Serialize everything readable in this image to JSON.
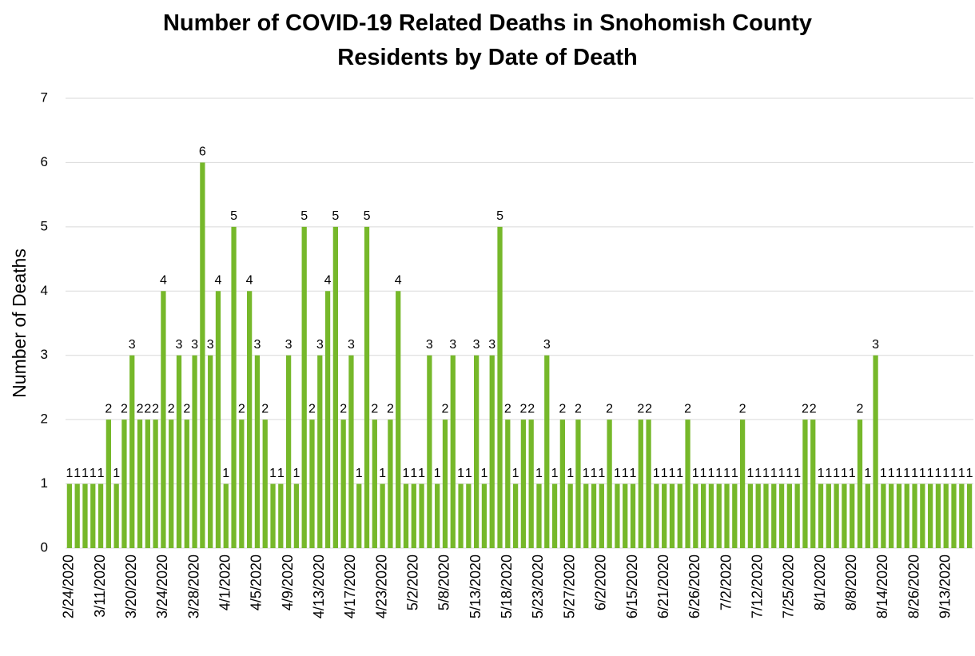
{
  "chart_data": {
    "type": "bar",
    "title": "Number of COVID-19 Related Deaths in Snohomish County Residents by Date of Death",
    "y_label": "Number of Deaths",
    "color": "#76b82a",
    "grid": true,
    "ylim": [
      0,
      7
    ],
    "yticks": [
      0,
      1,
      2,
      3,
      4,
      5,
      6,
      7
    ],
    "categories": [
      "2/24/2020",
      null,
      null,
      null,
      "3/11/2020",
      null,
      null,
      null,
      "3/20/2020",
      null,
      null,
      null,
      "3/24/2020",
      null,
      null,
      null,
      "3/28/2020",
      null,
      null,
      null,
      "4/1/2020",
      null,
      null,
      null,
      "4/5/2020",
      null,
      null,
      null,
      "4/9/2020",
      null,
      null,
      null,
      "4/13/2020",
      null,
      null,
      null,
      "4/17/2020",
      null,
      null,
      null,
      "4/23/2020",
      null,
      null,
      null,
      "5/2/2020",
      null,
      null,
      null,
      "5/8/2020",
      null,
      null,
      null,
      "5/13/2020",
      null,
      null,
      null,
      "5/18/2020",
      null,
      null,
      null,
      "5/23/2020",
      null,
      null,
      null,
      "5/27/2020",
      null,
      null,
      null,
      "6/2/2020",
      null,
      null,
      null,
      "6/15/2020",
      null,
      null,
      null,
      "6/21/2020",
      null,
      null,
      null,
      "6/26/2020",
      null,
      null,
      null,
      "7/2/2020",
      null,
      null,
      null,
      "7/12/2020",
      null,
      null,
      null,
      "7/25/2020",
      null,
      null,
      null,
      "8/1/2020",
      null,
      null,
      null,
      "8/8/2020",
      null,
      null,
      null,
      "8/14/2020",
      null,
      null,
      null,
      "8/26/2020",
      null,
      null,
      null,
      "9/13/2020",
      null,
      null,
      null
    ],
    "values": [
      1,
      1,
      1,
      1,
      1,
      2,
      1,
      2,
      3,
      2,
      2,
      2,
      4,
      2,
      3,
      2,
      3,
      6,
      3,
      4,
      1,
      5,
      2,
      4,
      3,
      2,
      1,
      1,
      3,
      1,
      5,
      2,
      3,
      4,
      5,
      2,
      3,
      1,
      5,
      2,
      1,
      2,
      4,
      1,
      1,
      1,
      3,
      1,
      2,
      3,
      1,
      1,
      3,
      1,
      3,
      5,
      2,
      1,
      2,
      2,
      1,
      3,
      1,
      2,
      1,
      2,
      1,
      1,
      1,
      2,
      1,
      1,
      1,
      2,
      2,
      1,
      1,
      1,
      1,
      2,
      1,
      1,
      1,
      1,
      1,
      1,
      2,
      1,
      1,
      1,
      1,
      1,
      1,
      1,
      2,
      2,
      1,
      1,
      1,
      1,
      1,
      2,
      1,
      3,
      1,
      1,
      1,
      1,
      1,
      1,
      1,
      1,
      1,
      1,
      1,
      1
    ]
  }
}
